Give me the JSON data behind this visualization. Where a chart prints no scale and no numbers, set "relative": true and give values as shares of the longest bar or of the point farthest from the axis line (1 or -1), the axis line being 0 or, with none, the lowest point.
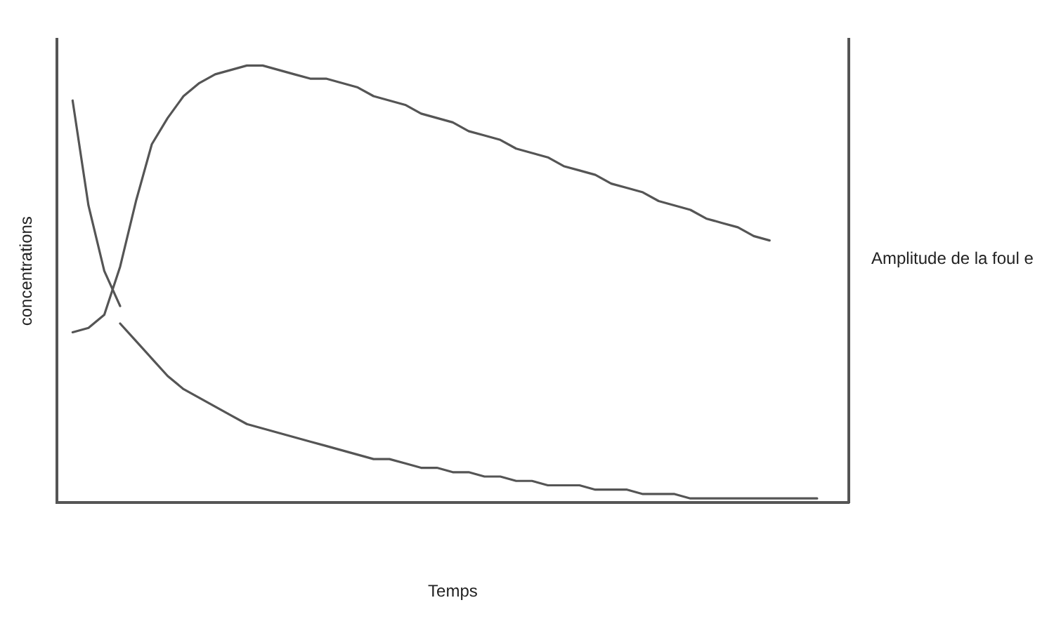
{
  "chart_data": {
    "type": "line",
    "xlabel": "Temps",
    "ylabel": "concentrations",
    "y2label": "Amplitude de la foul e",
    "relative": true,
    "grid": false,
    "legend": false,
    "marker": "none",
    "line_style": "solid",
    "categories": [
      null,
      null,
      null,
      null,
      null,
      null,
      null,
      null,
      null,
      null,
      null,
      null,
      null,
      null,
      null,
      null,
      null,
      null,
      null,
      null,
      null,
      null,
      null,
      null,
      null,
      null,
      null,
      null,
      null,
      null,
      null,
      null,
      null,
      null,
      null,
      null,
      null,
      null,
      null,
      null,
      null,
      null,
      null,
      null,
      null,
      null,
      null,
      null,
      null,
      null,
      null
    ],
    "series": [
      {
        "color": "#555555",
        "values": [
          null,
          0.39,
          0.4,
          0.43,
          0.54,
          0.69,
          0.82,
          0.88,
          0.93,
          0.96,
          0.98,
          0.99,
          1,
          1,
          0.99,
          0.98,
          0.97,
          0.97,
          0.96,
          0.95,
          0.93,
          0.92,
          0.91,
          0.89,
          0.88,
          0.87,
          0.85,
          0.84,
          0.83,
          0.81,
          0.8,
          0.79,
          0.77,
          0.76,
          0.75,
          0.73,
          0.72,
          0.71,
          0.69,
          0.68,
          0.67,
          0.65,
          0.64,
          0.63,
          0.61,
          0.6,
          null,
          null,
          null,
          null,
          null
        ]
      },
      {
        "color": "#555555",
        "values": [
          null,
          0.92,
          0.68,
          0.53,
          0.45,
          null,
          null,
          null,
          null,
          null,
          null,
          null,
          null,
          null,
          null,
          null,
          null,
          null,
          null,
          null,
          null,
          null,
          null,
          null,
          null,
          null,
          null,
          null,
          null,
          null,
          null,
          null,
          null,
          null,
          null,
          null,
          null,
          null,
          null,
          null,
          null,
          null,
          null,
          null,
          null,
          null,
          null,
          null,
          null,
          null,
          null
        ]
      },
      {
        "color": "#555555",
        "values": [
          null,
          null,
          null,
          null,
          0.41,
          0.37,
          0.33,
          0.29,
          0.26,
          0.24,
          0.22,
          0.2,
          0.18,
          0.17,
          0.16,
          0.15,
          0.14,
          0.13,
          0.12,
          0.11,
          0.1,
          0.1,
          0.09,
          0.08,
          0.08,
          0.07,
          0.07,
          0.06,
          0.06,
          0.05,
          0.05,
          0.04,
          0.04,
          0.04,
          0.03,
          0.03,
          0.03,
          0.02,
          0.02,
          0.02,
          0.01,
          0.01,
          0.01,
          0.01,
          0.01,
          0.01,
          0.01,
          0.01,
          0.01,
          null,
          null
        ]
      }
    ]
  }
}
